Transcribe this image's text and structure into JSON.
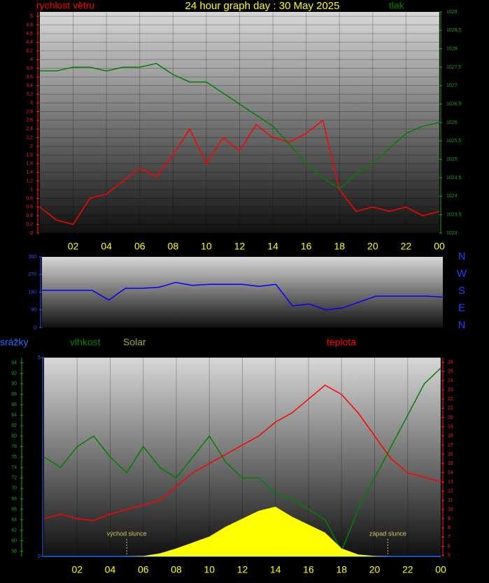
{
  "chart_data": [
    {
      "type": "line",
      "title": "24 hour graph day : 30 May 2025",
      "x": [
        0,
        1,
        2,
        3,
        4,
        5,
        6,
        7,
        8,
        9,
        10,
        11,
        12,
        13,
        14,
        15,
        16,
        17,
        18,
        19,
        20,
        21,
        22,
        23,
        24
      ],
      "xlim": [
        0,
        24
      ],
      "xticks": [
        {
          "value": 2,
          "label": "02"
        },
        {
          "value": 4,
          "label": "04"
        },
        {
          "value": 6,
          "label": "06"
        },
        {
          "value": 8,
          "label": "08"
        },
        10,
        12,
        14,
        16,
        18,
        20,
        22,
        {
          "value": 24,
          "label": "00"
        }
      ],
      "ylim": [
        0,
        5.1
      ],
      "yticks": [
        0,
        {
          "value": 0.2,
          "label": "0,2"
        },
        {
          "value": 0.4,
          "label": "0,4"
        },
        {
          "value": 0.6,
          "label": "0,6"
        },
        {
          "value": 0.8,
          "label": "0,8"
        },
        1,
        {
          "value": 1.2,
          "label": "1,2"
        },
        {
          "value": 1.4,
          "label": "1,4"
        },
        {
          "value": 1.6,
          "label": "1,6"
        },
        {
          "value": 1.8,
          "label": "1,8"
        },
        2,
        {
          "value": 2.2,
          "label": "2,2"
        },
        {
          "value": 2.4,
          "label": "2,4"
        },
        {
          "value": 2.6,
          "label": "2,6"
        },
        {
          "value": 2.8,
          "label": "2,8"
        },
        3,
        {
          "value": 3.2,
          "label": "3,2"
        },
        {
          "value": 3.4,
          "label": "3,4"
        },
        {
          "value": 3.6,
          "label": "3,6"
        },
        {
          "value": 3.8,
          "label": "3,8"
        },
        4,
        {
          "value": 4.2,
          "label": "4,2"
        },
        {
          "value": 4.4,
          "label": "4,4"
        },
        {
          "value": 4.6,
          "label": "4,6"
        },
        {
          "value": 4.8,
          "label": "4,8"
        },
        5
      ],
      "y2lim": [
        1023,
        1029
      ],
      "y2ticks": [
        1023,
        {
          "value": 1023.5,
          "label": "1023,5"
        },
        1024,
        {
          "value": 1024.5,
          "label": "1024,5"
        },
        1025,
        {
          "value": 1025.5,
          "label": "1025,5"
        },
        1026,
        {
          "value": 1026.5,
          "label": "1026,5"
        },
        1027,
        {
          "value": 1027.5,
          "label": "1027,5"
        },
        1028,
        {
          "value": 1028.5,
          "label": "1028,5"
        },
        1029
      ],
      "grid": true,
      "series": [
        {
          "name": "rychlost větru",
          "color": "#ff0000",
          "values": [
            0.6,
            0.3,
            0.2,
            0.8,
            0.9,
            1.2,
            1.5,
            1.3,
            1.8,
            2.4,
            1.6,
            2.2,
            1.9,
            2.5,
            2.2,
            2.1,
            2.3,
            2.6,
            1.0,
            0.5,
            0.6,
            0.5,
            0.6,
            0.4,
            0.5
          ]
        },
        {
          "name": "tlak",
          "color": "#008000",
          "axis": "y2",
          "values": [
            1027.4,
            1027.4,
            1027.5,
            1027.5,
            1027.4,
            1027.5,
            1027.5,
            1027.6,
            1027.3,
            1027.1,
            1027.1,
            1026.8,
            1026.5,
            1026.2,
            1025.9,
            1025.4,
            1024.9,
            1024.5,
            1024.2,
            1024.6,
            1024.9,
            1025.3,
            1025.7,
            1025.9,
            1026.0
          ]
        }
      ]
    },
    {
      "type": "line",
      "x": [
        0,
        1,
        2,
        3,
        4,
        5,
        6,
        7,
        8,
        9,
        10,
        11,
        12,
        13,
        14,
        15,
        16,
        17,
        18,
        19,
        20,
        21,
        22,
        23,
        24
      ],
      "xlim": [
        0,
        24
      ],
      "ylim": [
        0,
        360
      ],
      "yticks": [
        0,
        90,
        180,
        270,
        360
      ],
      "direction_labels": [
        "N",
        "W",
        "S",
        "E",
        "N"
      ],
      "series": [
        {
          "color": "#0000ff",
          "values": [
            190,
            190,
            190,
            190,
            140,
            200,
            200,
            205,
            230,
            215,
            220,
            220,
            220,
            210,
            220,
            110,
            120,
            90,
            100,
            130,
            160,
            160,
            160,
            160,
            155
          ]
        }
      ]
    },
    {
      "type": "line",
      "x": [
        0,
        1,
        2,
        3,
        4,
        5,
        6,
        7,
        8,
        9,
        10,
        11,
        12,
        13,
        14,
        15,
        16,
        17,
        18,
        19,
        20,
        21,
        22,
        23,
        24
      ],
      "xlim": [
        0,
        24
      ],
      "xticks": [
        {
          "value": 2,
          "label": "02"
        },
        {
          "value": 4,
          "label": "04"
        },
        {
          "value": 6,
          "label": "06"
        },
        {
          "value": 8,
          "label": "08"
        },
        10,
        12,
        14,
        16,
        18,
        20,
        22,
        {
          "value": 24,
          "label": "00"
        }
      ],
      "ylim": [
        57,
        95
      ],
      "yticks": [
        58,
        60,
        62,
        64,
        66,
        68,
        70,
        72,
        74,
        76,
        78,
        80,
        82,
        84,
        86,
        88,
        90,
        92,
        94
      ],
      "y2lim": [
        4.9,
        26.5
      ],
      "y2ticks": [
        5,
        6,
        7,
        8,
        9,
        10,
        11,
        12,
        13,
        14,
        15,
        16,
        17,
        18,
        19,
        20,
        21,
        22,
        23,
        24,
        25,
        26
      ],
      "y3lim": [
        0,
        5
      ],
      "y3ticks": [
        0,
        5
      ],
      "y4lim": [
        0,
        1000
      ],
      "annotations": [
        {
          "text": "východ slunce",
          "x": 5
        },
        {
          "text": "západ slunce",
          "x": 20.8
        }
      ],
      "series": [
        {
          "name": "srážky",
          "color": "#1e6fff",
          "axis": "y3",
          "values": [
            0,
            0,
            0,
            0,
            0,
            0,
            0,
            0,
            0,
            0,
            0,
            0,
            0,
            0,
            0,
            0,
            0,
            0,
            0,
            0,
            0,
            0,
            0,
            0,
            0
          ]
        },
        {
          "name": "vlhkost",
          "color": "#008000",
          "values": [
            76,
            74,
            78,
            80,
            76,
            73,
            78,
            74,
            72,
            76,
            80,
            75,
            72,
            72,
            69,
            68,
            66,
            64,
            58,
            66,
            72,
            78,
            84,
            90,
            93
          ]
        },
        {
          "name": "Solar",
          "color": "#a8a838",
          "fill": "#ffff00",
          "axis": "y4",
          "values": [
            0,
            0,
            0,
            0,
            0,
            0,
            2,
            15,
            40,
            70,
            100,
            150,
            190,
            230,
            250,
            200,
            160,
            120,
            40,
            10,
            2,
            0,
            0,
            0,
            0
          ]
        },
        {
          "name": "teplota",
          "color": "#ff0000",
          "axis": "y2",
          "values": [
            9.0,
            9.5,
            9.0,
            8.8,
            9.5,
            10.0,
            10.5,
            11.0,
            12.5,
            14.0,
            15.0,
            16.0,
            17.0,
            18.0,
            19.5,
            20.5,
            22.0,
            23.5,
            22.5,
            20.5,
            18.0,
            15.5,
            14.0,
            13.5,
            13.0
          ]
        }
      ]
    }
  ]
}
